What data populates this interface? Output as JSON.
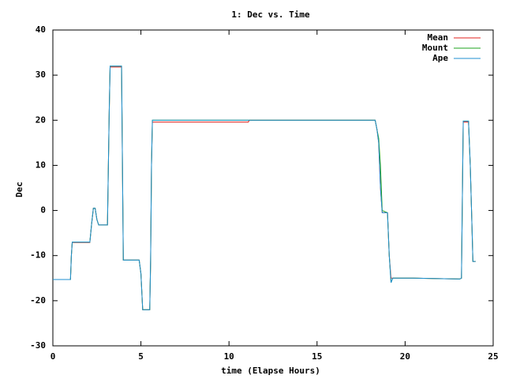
{
  "chart_data": {
    "type": "line",
    "title": "1: Dec vs. Time",
    "x_label": "time (Elapse Hours)",
    "y_label": "Dec",
    "x": [
      0,
      1.0,
      1.05,
      1.1,
      2.1,
      2.2,
      2.3,
      2.4,
      2.5,
      2.6,
      3.1,
      3.2,
      3.25,
      3.9,
      3.95,
      4.0,
      4.9,
      5.0,
      5.1,
      5.5,
      5.55,
      5.6,
      5.65,
      11.1,
      11.15,
      18.3,
      18.4,
      18.5,
      18.6,
      18.7,
      19.0,
      19.1,
      19.2,
      19.3,
      20.4,
      20.45,
      23.1,
      23.2,
      23.3,
      23.6,
      23.7,
      23.8,
      23.85,
      24.0
    ],
    "series": [
      {
        "name": "Mean",
        "color": "#e0201c",
        "values": [
          -15.3,
          -15.3,
          -10,
          -7.1,
          -7.1,
          -3,
          0.5,
          0.5,
          -2,
          -3.2,
          -3.2,
          22,
          31.8,
          31.8,
          10.5,
          -11,
          -11,
          -14,
          -22,
          -22,
          -11,
          10,
          19.6,
          19.6,
          20,
          20,
          18,
          15,
          5,
          -0.5,
          -0.5,
          -10,
          -15,
          -15,
          -15,
          -15,
          -15.2,
          -15,
          19.6,
          19.6,
          10,
          -4,
          -11.3,
          -11.3
        ]
      },
      {
        "name": "Mount",
        "color": "#1ca31c",
        "values": [
          -15.3,
          -15.3,
          -10,
          -7,
          -7,
          -3,
          0.5,
          0.5,
          -2,
          -3.2,
          -3.2,
          22,
          32,
          32,
          10.5,
          -11,
          -11,
          -14,
          -22,
          -22,
          -11,
          10,
          20,
          20,
          20,
          20,
          18,
          16,
          10,
          0,
          -0.5,
          -10,
          -16,
          -15,
          -15,
          -15,
          -15.2,
          -15,
          19.8,
          19.8,
          10,
          -4,
          -11.3,
          -11.3
        ]
      },
      {
        "name": "Ape",
        "color": "#1f8fd1",
        "values": [
          -15.3,
          -15.3,
          -10,
          -7,
          -7,
          -3,
          0.5,
          0.5,
          -2,
          -3.2,
          -3.2,
          22,
          32,
          32,
          10.5,
          -11,
          -11,
          -14,
          -22,
          -22,
          -11,
          10,
          20,
          20,
          20,
          20,
          18,
          15,
          5,
          -0.5,
          -0.5,
          -10,
          -16,
          -15,
          -15,
          -15,
          -15.2,
          -15,
          19.8,
          19.8,
          10,
          -4,
          -11.3,
          -11.3
        ]
      }
    ],
    "xlim": [
      0,
      25
    ],
    "xticks": [
      0,
      5,
      10,
      15,
      20,
      25
    ],
    "ylim": [
      -30,
      40
    ],
    "yticks": [
      -30,
      -20,
      -10,
      0,
      10,
      20,
      30,
      40
    ],
    "legend": "top-right"
  }
}
